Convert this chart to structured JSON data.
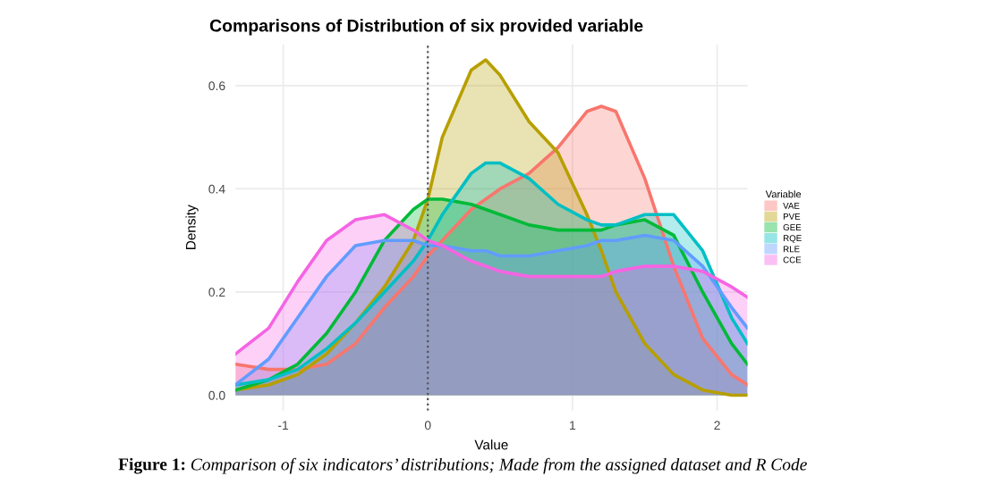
{
  "chart_data": {
    "type": "area",
    "title": "Comparisons of Distribution of six provided variable",
    "xlabel": "Value",
    "ylabel": "Density",
    "legend_title": "Variable",
    "legend": "right",
    "grid": true,
    "x": [
      -1.33,
      -1.1,
      -0.9,
      -0.7,
      -0.5,
      -0.3,
      -0.1,
      0,
      0.1,
      0.3,
      0.4,
      0.5,
      0.7,
      0.9,
      1.1,
      1.2,
      1.3,
      1.5,
      1.7,
      1.9,
      2.1,
      2.21
    ],
    "series": [
      {
        "name": "VAE",
        "color": "#f8766d",
        "values": [
          0.06,
          0.05,
          0.05,
          0.06,
          0.1,
          0.17,
          0.23,
          0.27,
          0.3,
          0.36,
          0.38,
          0.4,
          0.43,
          0.48,
          0.55,
          0.56,
          0.55,
          0.42,
          0.25,
          0.11,
          0.04,
          0.02
        ]
      },
      {
        "name": "PVE",
        "color": "#b79f00",
        "values": [
          0.01,
          0.02,
          0.04,
          0.08,
          0.14,
          0.21,
          0.3,
          0.38,
          0.5,
          0.63,
          0.65,
          0.62,
          0.53,
          0.47,
          0.35,
          0.28,
          0.2,
          0.1,
          0.04,
          0.01,
          0.0,
          0.0
        ]
      },
      {
        "name": "GEE",
        "color": "#00ba38",
        "values": [
          0.01,
          0.03,
          0.06,
          0.12,
          0.2,
          0.3,
          0.36,
          0.38,
          0.38,
          0.37,
          0.36,
          0.35,
          0.33,
          0.32,
          0.32,
          0.32,
          0.33,
          0.34,
          0.31,
          0.2,
          0.1,
          0.06
        ]
      },
      {
        "name": "RQE",
        "color": "#00bfc4",
        "values": [
          0.02,
          0.03,
          0.05,
          0.09,
          0.14,
          0.2,
          0.26,
          0.3,
          0.35,
          0.43,
          0.45,
          0.45,
          0.42,
          0.37,
          0.34,
          0.33,
          0.33,
          0.35,
          0.35,
          0.28,
          0.15,
          0.1
        ]
      },
      {
        "name": "RLE",
        "color": "#619cff",
        "values": [
          0.02,
          0.07,
          0.15,
          0.23,
          0.29,
          0.3,
          0.3,
          0.29,
          0.29,
          0.28,
          0.28,
          0.27,
          0.27,
          0.28,
          0.29,
          0.3,
          0.3,
          0.31,
          0.3,
          0.25,
          0.17,
          0.13
        ]
      },
      {
        "name": "CCE",
        "color": "#f564e3",
        "values": [
          0.08,
          0.13,
          0.22,
          0.3,
          0.34,
          0.35,
          0.32,
          0.3,
          0.29,
          0.26,
          0.25,
          0.24,
          0.23,
          0.23,
          0.23,
          0.23,
          0.24,
          0.25,
          0.25,
          0.24,
          0.21,
          0.19
        ]
      }
    ],
    "xlim": [
      -1.33,
      2.21
    ],
    "ylim": [
      -0.03,
      0.68
    ],
    "xticks": [
      -1,
      0,
      1,
      2
    ],
    "yticks": [
      {
        "value": 0,
        "label": "0.0"
      },
      {
        "value": 0.2,
        "label": "0.2"
      },
      {
        "value": 0.4,
        "label": "0.4"
      },
      {
        "value": 0.6,
        "label": "0.6"
      }
    ],
    "ref_lines": [
      {
        "axis": "x",
        "value": 0,
        "color": "#555555",
        "line_style": "dotted"
      }
    ],
    "annotations": [
      "Figure 1:",
      "Comparison of six indicators’ distributions; Made from the assigned dataset and R Code"
    ]
  }
}
